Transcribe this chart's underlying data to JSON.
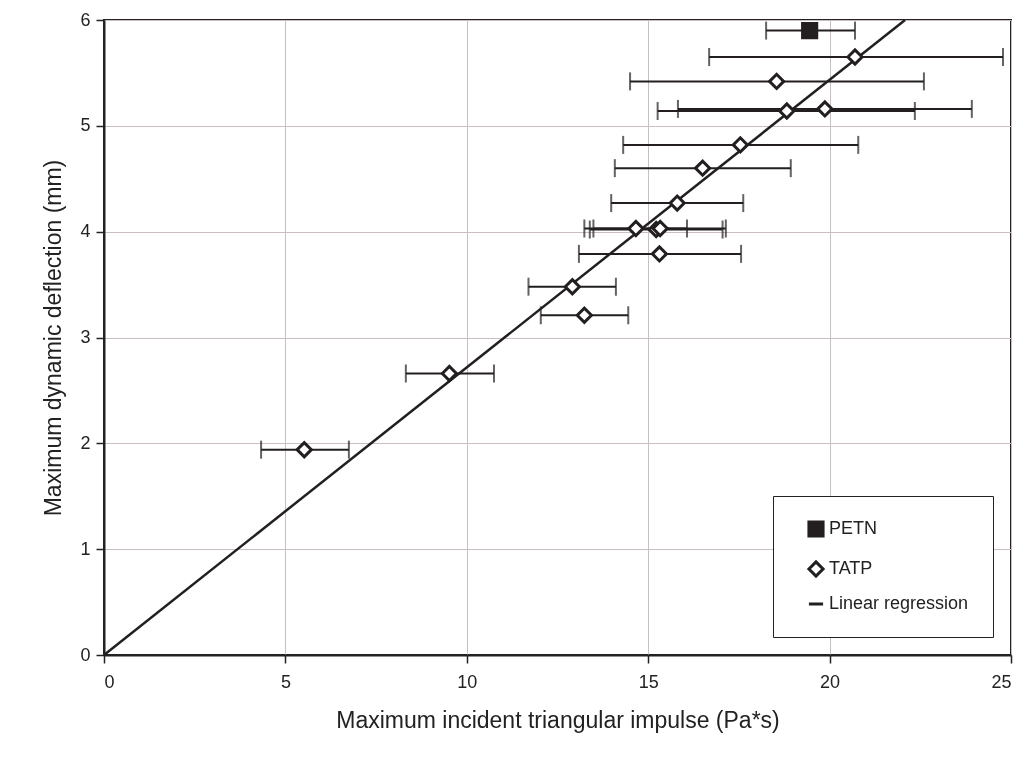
{
  "chart_data": {
    "type": "scatter",
    "xlabel": "Maximum incident triangular impulse (Pa*s)",
    "ylabel": "Maximum dynamic deflection (mm)",
    "xlim": [
      0,
      25
    ],
    "xticks": [
      0,
      5,
      10,
      15,
      20,
      25
    ],
    "ylim": [
      0,
      6
    ],
    "yticks": [
      0,
      1,
      2,
      3,
      4,
      5,
      6
    ],
    "grid": true,
    "legend": "bottom right",
    "series": [
      {
        "name": "PETN",
        "marker": "square",
        "color": "#231f20",
        "x": [
          19.45
        ],
        "values": [
          5.9
        ],
        "xerrors": [
          [
            18.25,
            20.7
          ]
        ]
      },
      {
        "name": "TATP",
        "marker": "diamond",
        "color": "#231f20",
        "x": [
          20.7,
          18.54,
          18.82,
          19.87,
          17.54,
          16.5,
          15.8,
          14.66,
          15.22,
          15.33,
          15.31,
          12.91,
          13.24,
          9.52,
          5.52
        ],
        "values": [
          5.65,
          5.42,
          5.14,
          5.16,
          4.82,
          4.6,
          4.27,
          4.03,
          4.02,
          4.03,
          3.79,
          3.48,
          3.21,
          2.66,
          1.94
        ],
        "xerrors": [
          [
            16.68,
            24.78
          ],
          [
            14.5,
            22.6
          ],
          [
            15.26,
            22.35
          ],
          [
            15.82,
            23.92
          ],
          [
            14.31,
            20.79
          ],
          [
            14.08,
            18.93
          ],
          [
            13.98,
            17.62
          ],
          [
            13.24,
            16.07
          ],
          [
            13.39,
            17.05
          ],
          [
            13.49,
            17.14
          ],
          [
            13.09,
            17.56
          ],
          [
            11.7,
            14.11
          ],
          [
            12.04,
            14.45
          ],
          [
            8.32,
            10.75
          ],
          [
            4.33,
            6.75
          ]
        ]
      },
      {
        "name": "Linear regression",
        "type": "line",
        "marker": "none",
        "color": "#231f20",
        "x": [
          0,
          22.08
        ],
        "values": [
          0,
          6
        ]
      }
    ]
  }
}
